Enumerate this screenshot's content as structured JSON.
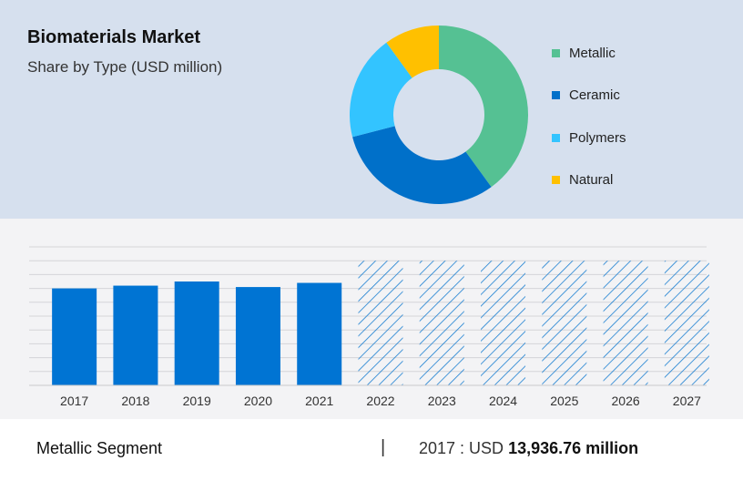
{
  "header": {
    "title": "Biomaterials Market",
    "subtitle": "Share by Type (USD million)"
  },
  "colors": {
    "metallic": "#55c193",
    "ceramic": "#0070c9",
    "polymers": "#33c4ff",
    "natural": "#ffc000",
    "bar": "#0074d3",
    "forecast_hatch": "#1a7fd1",
    "top_panel": "#d6e0ee",
    "bottom_panel": "#f3f3f5"
  },
  "footer": {
    "segment": "Metallic Segment",
    "divider": "|",
    "stat_prefix": "2017 : USD ",
    "stat_value": "13,936.76 million"
  },
  "chart_data": [
    {
      "type": "pie",
      "title": "Share by Type (USD million)",
      "donut": true,
      "legend_position": "right",
      "labels": [
        "Metallic",
        "Ceramic",
        "Polymers",
        "Natural"
      ],
      "values": [
        40,
        31,
        19,
        10
      ],
      "colors": [
        "#55c193",
        "#0070c9",
        "#33c4ff",
        "#ffc000"
      ]
    },
    {
      "type": "bar",
      "categories": [
        "2017",
        "2018",
        "2019",
        "2020",
        "2021",
        "2022",
        "2023",
        "2024",
        "2025",
        "2026",
        "2027"
      ],
      "values": [
        70,
        72,
        75,
        71,
        74,
        null,
        null,
        null,
        null,
        null,
        null
      ],
      "forecast": [
        false,
        false,
        false,
        false,
        false,
        true,
        true,
        true,
        true,
        true,
        true
      ],
      "forecast_value": 90,
      "ylim": [
        0,
        100
      ],
      "grid": true,
      "xlabel": "",
      "ylabel": ""
    }
  ]
}
